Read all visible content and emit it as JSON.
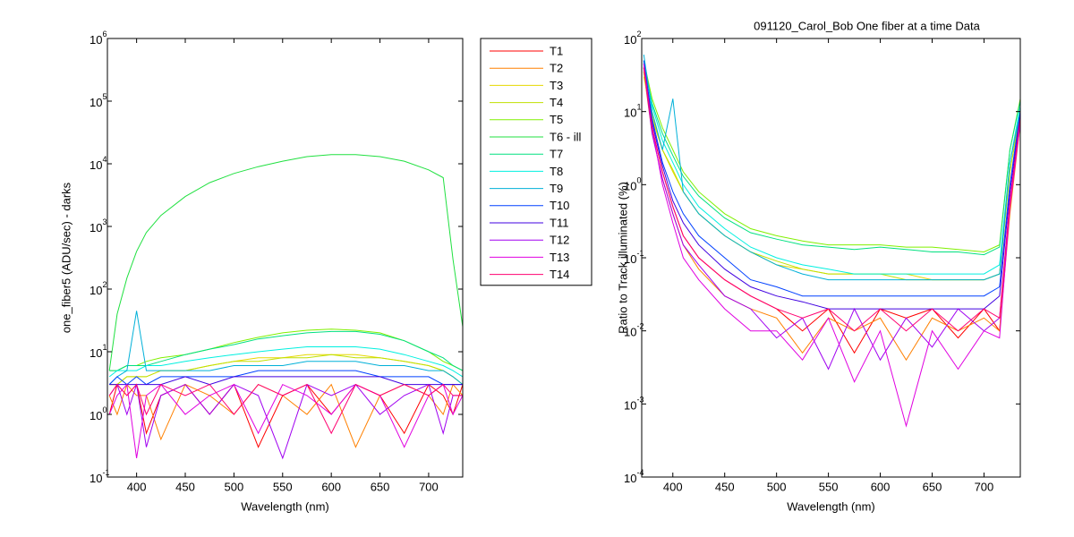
{
  "chart_data": [
    {
      "type": "line",
      "log_y": true,
      "xlabel": "Wavelength (nm)",
      "ylabel": "one_fiber5  (ADU/sec) - darks",
      "xlim": [
        370,
        735
      ],
      "xticks": [
        400,
        450,
        500,
        550,
        600,
        650,
        700
      ],
      "ylim": [
        0.1,
        1000000
      ],
      "yticks": [
        {
          "value": 0.1,
          "label": "10^-1"
        },
        {
          "value": 1,
          "label": "10^0"
        },
        {
          "value": 10,
          "label": "10^1"
        },
        {
          "value": 100,
          "label": "10^2"
        },
        {
          "value": 1000,
          "label": "10^3"
        },
        {
          "value": 10000,
          "label": "10^4"
        },
        {
          "value": 100000,
          "label": "10^5"
        },
        {
          "value": 1000000,
          "label": "10^6"
        }
      ],
      "legend": "outside right",
      "x": [
        372,
        380,
        390,
        400,
        410,
        425,
        450,
        475,
        500,
        525,
        550,
        575,
        600,
        625,
        650,
        675,
        700,
        715,
        725,
        735
      ],
      "series": [
        {
          "name": "T1",
          "color": "#ff0000",
          "values": [
            1,
            3,
            2,
            3,
            0.5,
            2,
            3,
            1,
            3,
            0.3,
            2,
            3,
            1,
            3,
            2,
            0.5,
            3,
            2,
            1,
            3
          ]
        },
        {
          "name": "T2",
          "color": "#ff8000",
          "values": [
            2,
            1,
            3,
            2,
            2,
            0.4,
            3,
            2,
            1,
            3,
            2,
            1,
            3,
            0.3,
            2,
            3,
            2,
            1,
            3,
            2
          ]
        },
        {
          "name": "T3",
          "color": "#e6d800",
          "values": [
            3,
            3,
            4,
            4,
            4,
            5,
            5,
            6,
            7,
            8,
            8,
            9,
            9,
            9,
            8,
            7,
            6,
            5,
            4,
            3
          ]
        },
        {
          "name": "T4",
          "color": "#c0e000",
          "values": [
            3,
            3,
            4,
            4,
            4,
            5,
            5,
            6,
            7,
            7,
            8,
            8,
            9,
            8,
            8,
            7,
            6,
            5,
            4,
            3
          ]
        },
        {
          "name": "T5",
          "color": "#80f000",
          "values": [
            5,
            5,
            6,
            6,
            7,
            8,
            9,
            11,
            14,
            17,
            20,
            22,
            23,
            22,
            20,
            15,
            10,
            7,
            6,
            5
          ]
        },
        {
          "name": "T6 - ill",
          "color": "#20e040",
          "values": [
            5,
            40,
            150,
            400,
            800,
            1500,
            3000,
            5000,
            7000,
            9000,
            11000,
            13000,
            14000,
            14000,
            13000,
            11000,
            8000,
            6000,
            300,
            25
          ]
        },
        {
          "name": "T7",
          "color": "#00e080",
          "values": [
            5,
            5,
            6,
            6,
            6,
            7,
            9,
            11,
            13,
            16,
            18,
            20,
            21,
            21,
            19,
            15,
            10,
            8,
            6,
            5
          ]
        },
        {
          "name": "T8",
          "color": "#00f0e0",
          "values": [
            4,
            5,
            5,
            5,
            6,
            6,
            7,
            8,
            9,
            10,
            11,
            12,
            12,
            12,
            11,
            9,
            7,
            6,
            5,
            4
          ]
        },
        {
          "name": "T9",
          "color": "#00b0d8",
          "values": [
            3,
            4,
            5,
            45,
            5,
            5,
            5,
            5,
            6,
            6,
            6,
            7,
            7,
            7,
            6,
            6,
            5,
            5,
            4,
            3
          ]
        },
        {
          "name": "T10",
          "color": "#0040ff",
          "values": [
            3,
            4,
            3,
            4,
            3,
            4,
            4,
            4,
            4,
            5,
            5,
            5,
            5,
            5,
            4,
            4,
            4,
            3,
            3,
            3
          ]
        },
        {
          "name": "T11",
          "color": "#4000e0",
          "values": [
            3,
            3,
            3,
            3,
            3,
            3,
            4,
            3,
            4,
            4,
            4,
            4,
            4,
            4,
            4,
            3,
            3,
            3,
            3,
            3
          ]
        },
        {
          "name": "T12",
          "color": "#a000f0",
          "values": [
            2,
            3,
            1,
            3,
            0.3,
            2,
            3,
            1,
            3,
            2,
            0.2,
            3,
            2,
            3,
            1,
            2,
            3,
            0.5,
            2,
            2
          ]
        },
        {
          "name": "T13",
          "color": "#e000e0",
          "values": [
            1,
            2,
            3,
            0.2,
            2,
            3,
            1,
            2,
            3,
            0.5,
            3,
            2,
            1,
            3,
            2,
            0.3,
            2,
            3,
            1,
            2
          ]
        },
        {
          "name": "T14",
          "color": "#ff0070",
          "values": [
            2,
            3,
            2,
            3,
            1,
            3,
            2,
            3,
            1,
            3,
            2,
            3,
            0.5,
            3,
            2,
            3,
            2,
            3,
            2,
            2
          ]
        }
      ]
    },
    {
      "type": "line",
      "log_y": true,
      "title": "091120_Carol_Bob  One fiber at a time Data",
      "xlabel": "Wavelength (nm)",
      "ylabel": "Ratio to Track illuminated (%)",
      "xlim": [
        370,
        735
      ],
      "xticks": [
        400,
        450,
        500,
        550,
        600,
        650,
        700
      ],
      "ylim": [
        0.0001,
        100
      ],
      "yticks": [
        {
          "value": 0.0001,
          "label": "10^-4"
        },
        {
          "value": 0.001,
          "label": "10^-3"
        },
        {
          "value": 0.01,
          "label": "10^-2"
        },
        {
          "value": 0.1,
          "label": "10^-1"
        },
        {
          "value": 1,
          "label": "10^0"
        },
        {
          "value": 10,
          "label": "10^1"
        },
        {
          "value": 100,
          "label": "10^2"
        }
      ],
      "x": [
        372,
        380,
        390,
        400,
        410,
        425,
        450,
        475,
        500,
        525,
        550,
        575,
        600,
        625,
        650,
        675,
        700,
        715,
        725,
        735
      ],
      "series": [
        {
          "name": "T1",
          "color": "#ff0000",
          "values": [
            40,
            6,
            1.5,
            0.5,
            0.2,
            0.1,
            0.05,
            0.03,
            0.02,
            0.01,
            0.02,
            0.005,
            0.02,
            0.015,
            0.02,
            0.008,
            0.02,
            0.01,
            0.5,
            8
          ]
        },
        {
          "name": "T2",
          "color": "#ff8000",
          "values": [
            35,
            5,
            1.2,
            0.4,
            0.15,
            0.07,
            0.03,
            0.02,
            0.015,
            0.005,
            0.015,
            0.01,
            0.015,
            0.004,
            0.015,
            0.01,
            0.015,
            0.01,
            0.4,
            7
          ]
        },
        {
          "name": "T3",
          "color": "#e6d800",
          "values": [
            30,
            8,
            3,
            1.5,
            0.8,
            0.4,
            0.2,
            0.12,
            0.08,
            0.07,
            0.06,
            0.06,
            0.06,
            0.06,
            0.05,
            0.05,
            0.05,
            0.06,
            1.5,
            10
          ]
        },
        {
          "name": "T4",
          "color": "#c0e000",
          "values": [
            35,
            9,
            3,
            1.6,
            0.8,
            0.4,
            0.2,
            0.12,
            0.09,
            0.07,
            0.06,
            0.06,
            0.06,
            0.05,
            0.05,
            0.05,
            0.05,
            0.06,
            1.5,
            10
          ]
        },
        {
          "name": "T5",
          "color": "#80f000",
          "values": [
            50,
            15,
            6,
            3,
            1.5,
            0.8,
            0.4,
            0.25,
            0.2,
            0.17,
            0.15,
            0.15,
            0.15,
            0.14,
            0.14,
            0.13,
            0.12,
            0.15,
            3,
            15
          ]
        },
        {
          "name": "T7",
          "color": "#00e080",
          "values": [
            45,
            13,
            5,
            2.5,
            1.3,
            0.7,
            0.35,
            0.22,
            0.18,
            0.15,
            0.14,
            0.13,
            0.14,
            0.13,
            0.12,
            0.12,
            0.11,
            0.14,
            3,
            14
          ]
        },
        {
          "name": "T8",
          "color": "#00f0e0",
          "values": [
            50,
            12,
            4,
            2,
            1,
            0.5,
            0.25,
            0.14,
            0.1,
            0.08,
            0.07,
            0.06,
            0.06,
            0.06,
            0.06,
            0.06,
            0.06,
            0.08,
            2,
            12
          ]
        },
        {
          "name": "T9",
          "color": "#00b0d8",
          "values": [
            60,
            10,
            3,
            15,
            0.8,
            0.4,
            0.2,
            0.12,
            0.08,
            0.06,
            0.05,
            0.05,
            0.05,
            0.05,
            0.05,
            0.05,
            0.05,
            0.06,
            2,
            10
          ]
        },
        {
          "name": "T10",
          "color": "#0040ff",
          "values": [
            50,
            8,
            2,
            0.8,
            0.4,
            0.2,
            0.1,
            0.05,
            0.04,
            0.03,
            0.03,
            0.03,
            0.03,
            0.03,
            0.03,
            0.03,
            0.03,
            0.04,
            1,
            10
          ]
        },
        {
          "name": "T11",
          "color": "#4000e0",
          "values": [
            45,
            7,
            1.8,
            0.6,
            0.3,
            0.15,
            0.07,
            0.04,
            0.03,
            0.025,
            0.02,
            0.02,
            0.02,
            0.02,
            0.02,
            0.02,
            0.02,
            0.03,
            0.8,
            9
          ]
        },
        {
          "name": "T12",
          "color": "#a000f0",
          "values": [
            40,
            5,
            1.2,
            0.4,
            0.15,
            0.08,
            0.03,
            0.02,
            0.008,
            0.015,
            0.003,
            0.02,
            0.004,
            0.015,
            0.006,
            0.02,
            0.01,
            0.015,
            0.6,
            8
          ]
        },
        {
          "name": "T13",
          "color": "#e000e0",
          "values": [
            45,
            6,
            1,
            0.3,
            0.1,
            0.05,
            0.02,
            0.01,
            0.01,
            0.004,
            0.015,
            0.002,
            0.01,
            0.0005,
            0.01,
            0.003,
            0.01,
            0.008,
            0.5,
            7
          ]
        },
        {
          "name": "T14",
          "color": "#ff0070",
          "values": [
            40,
            6,
            1.5,
            0.5,
            0.2,
            0.1,
            0.05,
            0.03,
            0.02,
            0.015,
            0.02,
            0.01,
            0.02,
            0.01,
            0.02,
            0.01,
            0.02,
            0.015,
            0.6,
            8
          ]
        }
      ]
    }
  ]
}
